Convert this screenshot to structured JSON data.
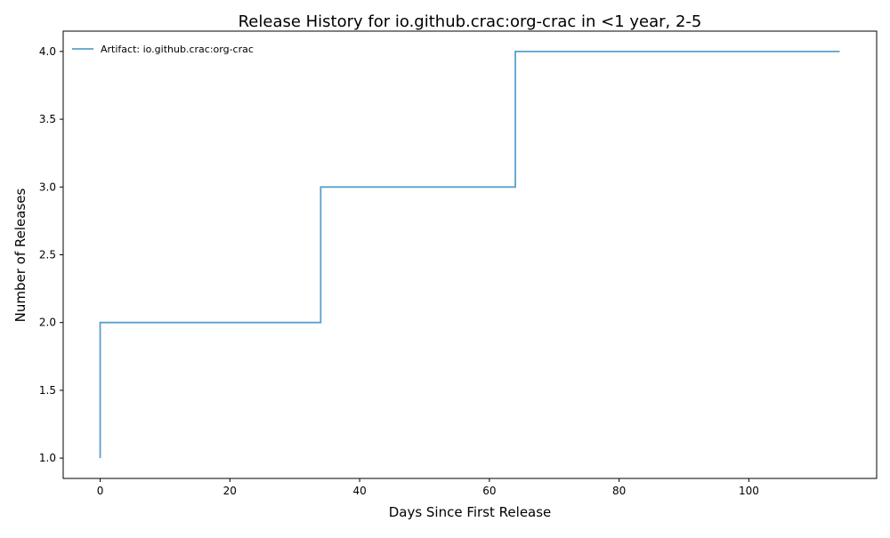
{
  "chart_data": {
    "type": "line",
    "step": "post",
    "title": "Release History for io.github.crac:org-crac in <1 year, 2-5",
    "xlabel": "Days Since First Release",
    "ylabel": "Number of Releases",
    "xlim": [
      -5.7,
      119.7
    ],
    "ylim": [
      0.85,
      4.15
    ],
    "xticks": [
      0,
      20,
      40,
      60,
      80,
      100
    ],
    "xtick_labels": [
      "0",
      "20",
      "40",
      "60",
      "80",
      "100"
    ],
    "yticks": [
      1.0,
      1.5,
      2.0,
      2.5,
      3.0,
      3.5,
      4.0
    ],
    "ytick_labels": [
      "1.0",
      "1.5",
      "2.0",
      "2.5",
      "3.0",
      "3.5",
      "4.0"
    ],
    "grid": false,
    "legend_position": "top-left",
    "series": [
      {
        "name": "Artifact: io.github.crac:org-crac",
        "color": "#5b9fcb",
        "x": [
          0,
          0,
          34,
          64,
          114
        ],
        "y": [
          1,
          2,
          3,
          4,
          4
        ]
      }
    ]
  }
}
